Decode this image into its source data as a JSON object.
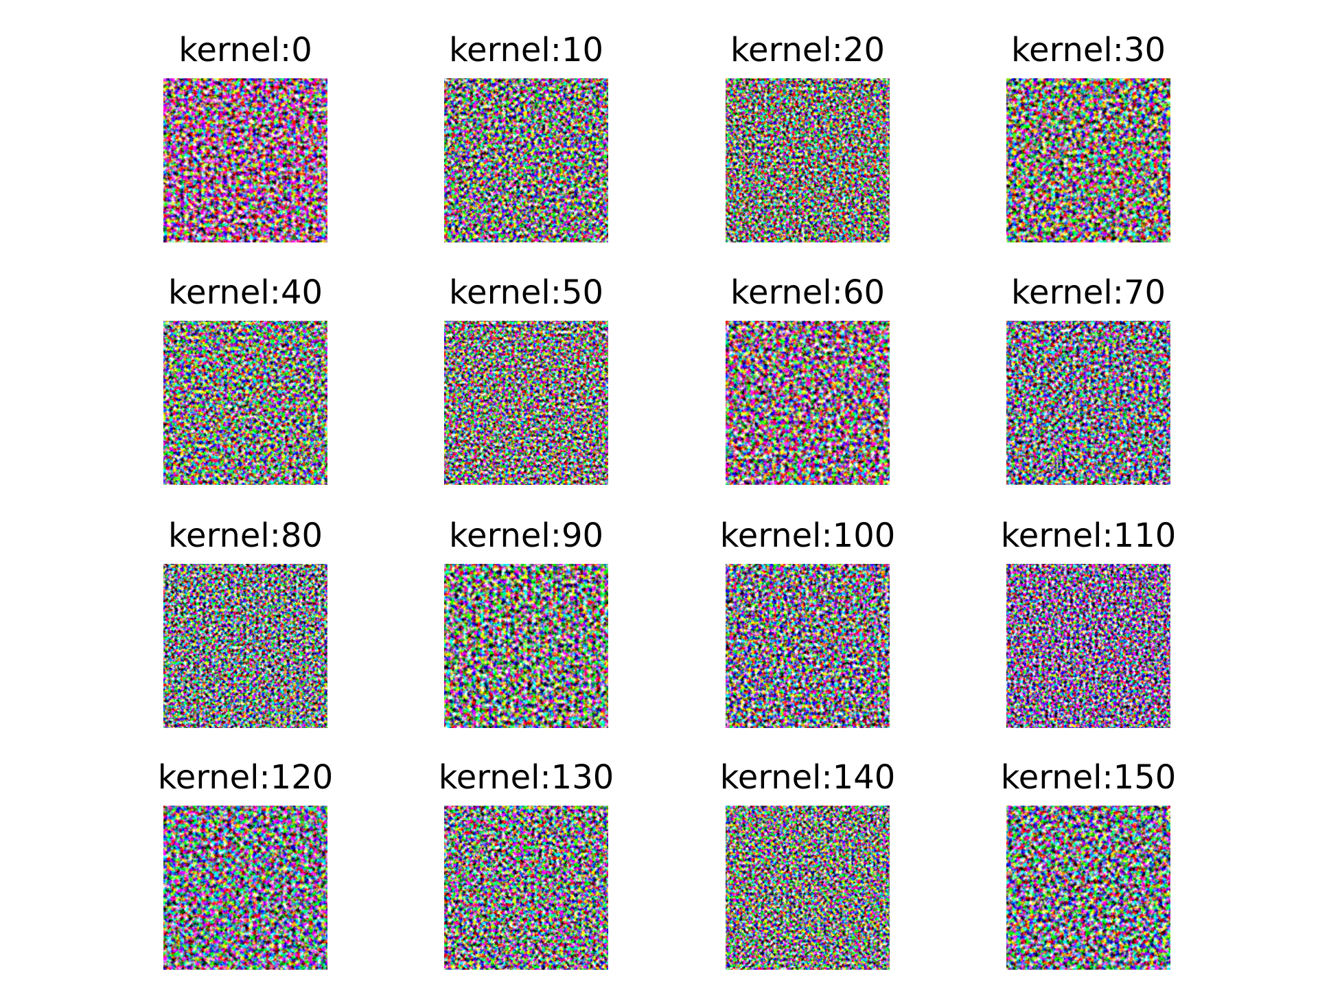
{
  "panels": [
    {
      "title": "kernel:0"
    },
    {
      "title": "kernel:10"
    },
    {
      "title": "kernel:20"
    },
    {
      "title": "kernel:30"
    },
    {
      "title": "kernel:40"
    },
    {
      "title": "kernel:50"
    },
    {
      "title": "kernel:60"
    },
    {
      "title": "kernel:70"
    },
    {
      "title": "kernel:80"
    },
    {
      "title": "kernel:90"
    },
    {
      "title": "kernel:100"
    },
    {
      "title": "kernel:110"
    },
    {
      "title": "kernel:120"
    },
    {
      "title": "kernel:130"
    },
    {
      "title": "kernel:140"
    },
    {
      "title": "kernel:150"
    }
  ]
}
